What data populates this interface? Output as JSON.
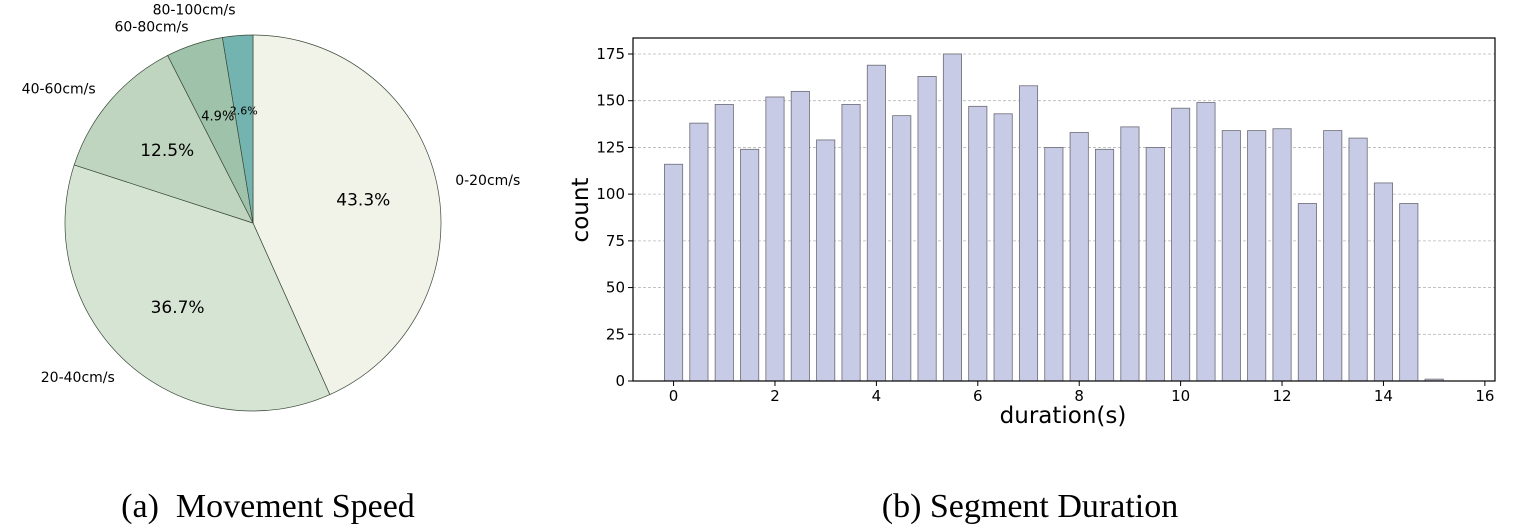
{
  "chart_data": [
    {
      "type": "pie",
      "caption": "(a)  Movement Speed",
      "slices": [
        {
          "label": "0-20cm/s",
          "value": 43.3,
          "pct_label": "43.3%",
          "color": "#f1f3e8"
        },
        {
          "label": "20-40cm/s",
          "value": 36.7,
          "pct_label": "36.7%",
          "color": "#d6e5d3"
        },
        {
          "label": "40-60cm/s",
          "value": 12.5,
          "pct_label": "12.5%",
          "color": "#c0d5bf"
        },
        {
          "label": "60-80cm/s",
          "value": 4.9,
          "pct_label": "4.9%",
          "color": "#9fc2aa"
        },
        {
          "label": "80-100cm/s",
          "value": 2.6,
          "pct_label": "2.6%",
          "color": "#74b4b0"
        }
      ],
      "start_angle_deg": 90,
      "direction": "clockwise"
    },
    {
      "type": "bar",
      "caption": "(b) Segment Duration",
      "xlabel": "duration(s)",
      "ylabel": "count",
      "xlim": [
        -0.8,
        16.2
      ],
      "ylim": [
        0,
        175
      ],
      "xticks": [
        0,
        2,
        4,
        6,
        8,
        10,
        12,
        14,
        16
      ],
      "yticks": [
        0,
        25,
        50,
        75,
        100,
        125,
        150,
        175
      ],
      "grid": "y-dashed",
      "bar_color": "#c7cbe5",
      "x": [
        0,
        0.5,
        1,
        1.5,
        2,
        2.5,
        3,
        3.5,
        4,
        4.5,
        5,
        5.5,
        6,
        6.5,
        7,
        7.5,
        8,
        8.5,
        9,
        9.5,
        10,
        10.5,
        11,
        11.5,
        12,
        12.5,
        13,
        13.5,
        14,
        14.5,
        15
      ],
      "values": [
        116,
        138,
        148,
        124,
        152,
        155,
        129,
        148,
        169,
        142,
        163,
        175,
        147,
        143,
        158,
        125,
        133,
        124,
        136,
        125,
        146,
        149,
        134,
        134,
        135,
        95,
        134,
        130,
        106,
        95,
        1
      ]
    }
  ]
}
